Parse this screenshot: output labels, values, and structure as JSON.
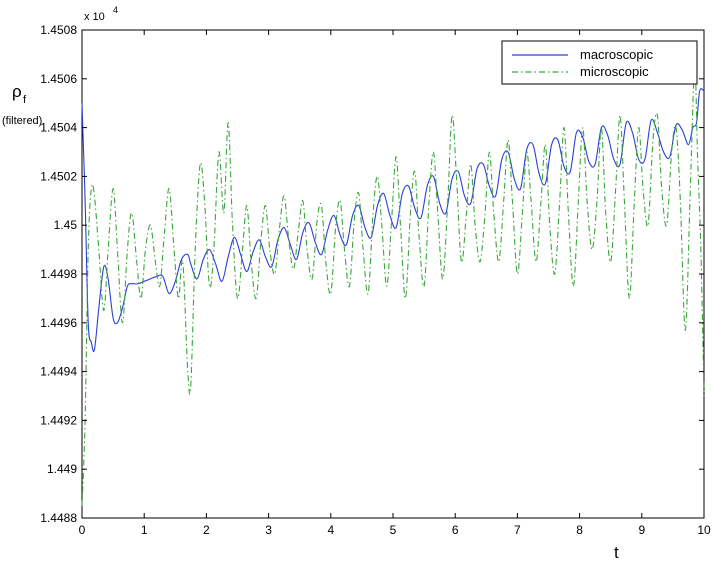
{
  "chart_data": {
    "type": "line",
    "xlim": [
      0,
      10
    ],
    "ylim": [
      1.4488,
      1.4508
    ],
    "y_exponent_label": "x 10",
    "y_exponent_power": "4",
    "xlabel": "t",
    "ylabel_main": "ρ",
    "ylabel_sub": "f",
    "ylabel_note": "(filtered)",
    "x_ticks": [
      0,
      1,
      2,
      3,
      4,
      5,
      6,
      7,
      8,
      9,
      10
    ],
    "x_tick_labels": [
      "0",
      "1",
      "2",
      "3",
      "4",
      "5",
      "6",
      "7",
      "8",
      "9",
      "10"
    ],
    "y_ticks": [
      1.4488,
      1.449,
      1.4492,
      1.4494,
      1.4496,
      1.4498,
      1.45,
      1.4502,
      1.4504,
      1.4506,
      1.4508
    ],
    "y_tick_labels": [
      "1.4488",
      "1.449",
      "1.4492",
      "1.4494",
      "1.4496",
      "1.4498",
      "1.45",
      "1.4502",
      "1.4504",
      "1.4506",
      "1.4508"
    ],
    "grid": false,
    "legend_position": "top-right",
    "series": [
      {
        "name": "macroscopic",
        "color": "#2b3fd6",
        "dash": "solid",
        "x": [
          0,
          0.05,
          0.1,
          0.15,
          0.2,
          0.27,
          0.35,
          0.42,
          0.5,
          0.57,
          0.65,
          0.73,
          0.8,
          0.9,
          1.0,
          1.1,
          1.2,
          1.3,
          1.4,
          1.5,
          1.6,
          1.7,
          1.75,
          1.85,
          1.95,
          2.05,
          2.15,
          2.25,
          2.35,
          2.45,
          2.55,
          2.65,
          2.75,
          2.85,
          2.95,
          3.05,
          3.15,
          3.25,
          3.35,
          3.45,
          3.55,
          3.65,
          3.75,
          3.85,
          3.95,
          4.05,
          4.15,
          4.25,
          4.35,
          4.45,
          4.55,
          4.65,
          4.75,
          4.85,
          4.95,
          5.05,
          5.15,
          5.25,
          5.35,
          5.45,
          5.55,
          5.65,
          5.75,
          5.85,
          5.95,
          6.05,
          6.15,
          6.25,
          6.35,
          6.45,
          6.55,
          6.65,
          6.75,
          6.85,
          6.95,
          7.05,
          7.15,
          7.25,
          7.35,
          7.45,
          7.55,
          7.65,
          7.75,
          7.85,
          7.95,
          8.05,
          8.15,
          8.25,
          8.35,
          8.45,
          8.55,
          8.65,
          8.75,
          8.85,
          8.95,
          9.05,
          9.15,
          9.25,
          9.35,
          9.45,
          9.55,
          9.65,
          9.75,
          9.82,
          9.88,
          9.93,
          10.0
        ],
        "y": [
          1.4505,
          1.4501,
          1.4496,
          1.44952,
          1.44949,
          1.44966,
          1.44983,
          1.44978,
          1.44962,
          1.4496,
          1.44966,
          1.44975,
          1.44976,
          1.44976,
          1.44977,
          1.44978,
          1.44979,
          1.44979,
          1.44972,
          1.44977,
          1.44986,
          1.44988,
          1.44984,
          1.44978,
          1.44986,
          1.4499,
          1.44984,
          1.44977,
          1.44987,
          1.44995,
          1.44988,
          1.44981,
          1.44989,
          1.44994,
          1.44987,
          1.44983,
          1.44994,
          1.44999,
          1.44992,
          1.44986,
          1.44997,
          1.45001,
          1.44993,
          1.44988,
          1.44998,
          1.45004,
          1.44996,
          1.44992,
          1.45004,
          1.45008,
          1.44999,
          1.44995,
          1.45008,
          1.45013,
          1.45004,
          1.44999,
          1.45013,
          1.45016,
          1.45007,
          1.45003,
          1.45016,
          1.4502,
          1.45009,
          1.45005,
          1.45019,
          1.45022,
          1.45012,
          1.45009,
          1.45023,
          1.45025,
          1.45016,
          1.45012,
          1.45027,
          1.4503,
          1.45019,
          1.45015,
          1.45031,
          1.45033,
          1.45021,
          1.45017,
          1.45033,
          1.45035,
          1.45024,
          1.45022,
          1.45038,
          1.45036,
          1.45026,
          1.45025,
          1.4504,
          1.45037,
          1.45027,
          1.45025,
          1.45042,
          1.45038,
          1.45027,
          1.45027,
          1.45043,
          1.45038,
          1.4503,
          1.45028,
          1.45041,
          1.45039,
          1.45033,
          1.4504,
          1.45042,
          1.45055,
          1.45055
        ]
      },
      {
        "name": "microscopic",
        "color": "#3aa63a",
        "dash": "dashdot",
        "x": [
          0,
          0.05,
          0.1,
          0.15,
          0.2,
          0.27,
          0.35,
          0.42,
          0.5,
          0.57,
          0.65,
          0.73,
          0.8,
          0.88,
          0.95,
          1.02,
          1.1,
          1.18,
          1.25,
          1.32,
          1.4,
          1.48,
          1.55,
          1.62,
          1.7,
          1.75,
          1.82,
          1.9,
          1.97,
          2.05,
          2.12,
          2.2,
          2.28,
          2.35,
          2.42,
          2.5,
          2.58,
          2.65,
          2.72,
          2.8,
          2.88,
          2.95,
          3.02,
          3.1,
          3.18,
          3.25,
          3.32,
          3.4,
          3.48,
          3.55,
          3.62,
          3.7,
          3.78,
          3.85,
          3.92,
          4.0,
          4.08,
          4.15,
          4.22,
          4.3,
          4.38,
          4.45,
          4.52,
          4.6,
          4.68,
          4.75,
          4.82,
          4.9,
          4.98,
          5.05,
          5.12,
          5.2,
          5.28,
          5.35,
          5.42,
          5.5,
          5.58,
          5.65,
          5.72,
          5.8,
          5.88,
          5.95,
          6.02,
          6.1,
          6.18,
          6.25,
          6.32,
          6.4,
          6.48,
          6.55,
          6.62,
          6.7,
          6.78,
          6.85,
          6.92,
          7.0,
          7.08,
          7.15,
          7.22,
          7.3,
          7.38,
          7.45,
          7.52,
          7.6,
          7.68,
          7.75,
          7.82,
          7.9,
          7.98,
          8.05,
          8.12,
          8.2,
          8.28,
          8.35,
          8.42,
          8.5,
          8.58,
          8.65,
          8.72,
          8.8,
          8.88,
          8.95,
          9.02,
          9.1,
          9.18,
          9.25,
          9.32,
          9.4,
          9.48,
          9.55,
          9.62,
          9.7,
          9.78,
          9.85,
          9.9,
          9.95,
          10.0
        ],
        "y": [
          1.44885,
          1.4492,
          1.4499,
          1.45015,
          1.45012,
          1.4499,
          1.44965,
          1.4499,
          1.45015,
          1.4499,
          1.4496,
          1.4499,
          1.45005,
          1.44985,
          1.4497,
          1.4499,
          1.45,
          1.44985,
          1.44975,
          1.44995,
          1.45015,
          1.4499,
          1.4497,
          1.44985,
          1.4494,
          1.44935,
          1.4499,
          1.45025,
          1.4501,
          1.44975,
          1.4499,
          1.4503,
          1.45005,
          1.45042,
          1.45,
          1.4497,
          1.4499,
          1.45008,
          1.44985,
          1.4497,
          1.44995,
          1.45008,
          1.4499,
          1.4498,
          1.45,
          1.45012,
          1.44995,
          1.44982,
          1.44998,
          1.4501,
          1.4499,
          1.44978,
          1.45002,
          1.45008,
          1.44985,
          1.44972,
          1.45,
          1.4501,
          1.4499,
          1.44975,
          1.45003,
          1.45013,
          1.4499,
          1.44972,
          1.45005,
          1.4502,
          1.45,
          1.44975,
          1.45003,
          1.45028,
          1.45,
          1.4497,
          1.45005,
          1.45022,
          1.44995,
          1.44975,
          1.4501,
          1.4503,
          1.45005,
          1.44978,
          1.4501,
          1.45045,
          1.4502,
          1.44985,
          1.45005,
          1.45025,
          1.45,
          1.44985,
          1.45005,
          1.4503,
          1.45005,
          1.44985,
          1.4501,
          1.45035,
          1.4501,
          1.4498,
          1.45005,
          1.4503,
          1.4501,
          1.44985,
          1.4501,
          1.45033,
          1.45,
          1.4498,
          1.4501,
          1.4504,
          1.45005,
          1.44975,
          1.4501,
          1.4504,
          1.4501,
          1.4499,
          1.4501,
          1.4504,
          1.45005,
          1.44985,
          1.45015,
          1.45045,
          1.4501,
          1.4497,
          1.4501,
          1.4504,
          1.45015,
          1.45,
          1.45035,
          1.45045,
          1.45015,
          1.45,
          1.4503,
          1.4504,
          1.4501,
          1.44957,
          1.45015,
          1.45065,
          1.45025,
          1.4499,
          1.4493
        ]
      }
    ]
  }
}
